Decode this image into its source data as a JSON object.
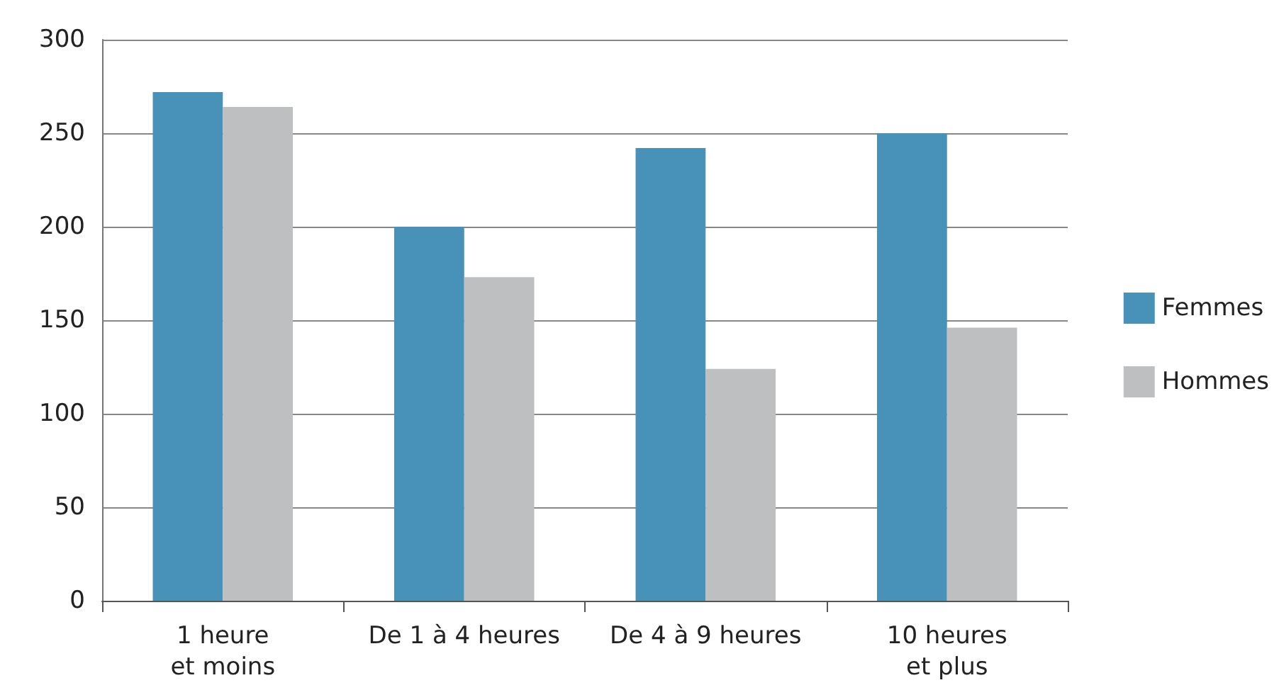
{
  "chart_data": {
    "type": "bar",
    "categories": [
      "1 heure\net moins",
      "De 1 à 4 heures",
      "De 4 à 9 heures",
      "10 heures\net plus"
    ],
    "series": [
      {
        "name": "Femmes",
        "color": "#4891b9",
        "values": [
          272,
          200,
          242,
          250
        ]
      },
      {
        "name": "Hommes",
        "color": "#bebfc1",
        "values": [
          264,
          173,
          124,
          146
        ]
      }
    ],
    "ylim": [
      0,
      300
    ],
    "yticks": [
      0,
      50,
      100,
      150,
      200,
      250,
      300
    ],
    "grid": "y",
    "legend": "right"
  }
}
